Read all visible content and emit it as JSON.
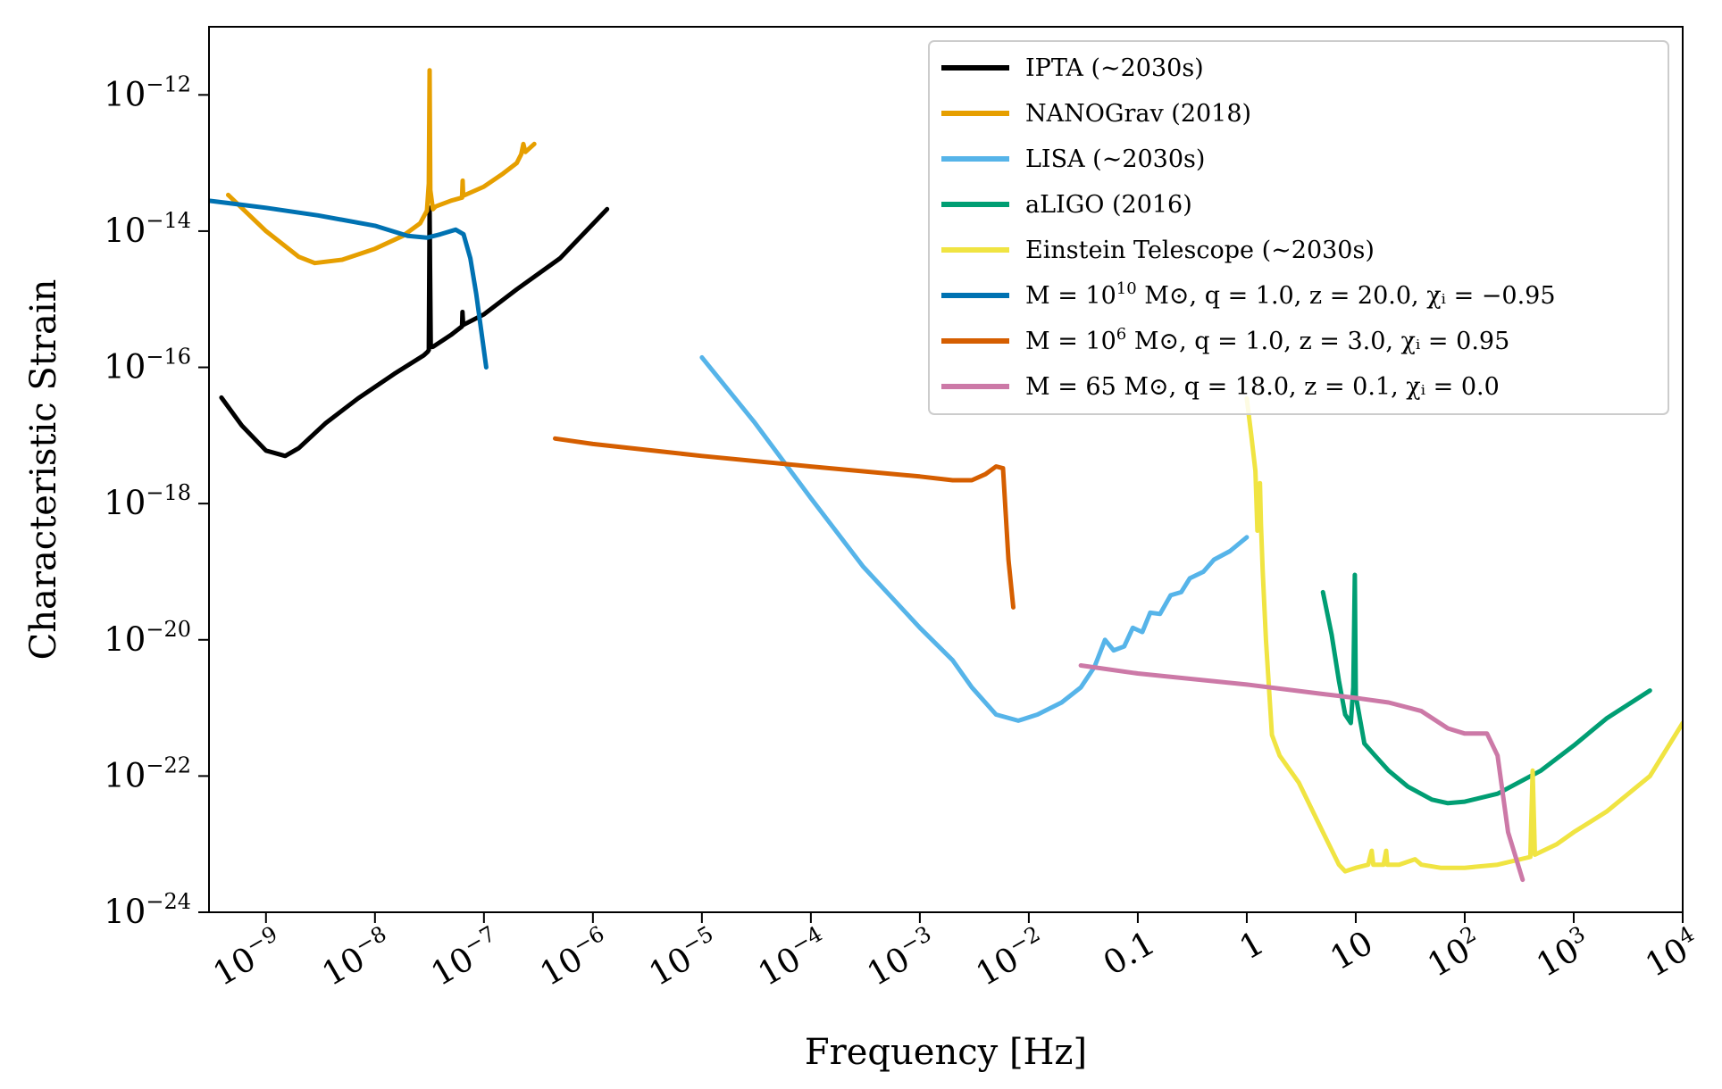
{
  "chart_data": {
    "type": "line",
    "xlabel": "Frequency [Hz]",
    "ylabel": "Characteristic Strain",
    "x_scale": "log",
    "y_scale": "log",
    "xlim": [
      3e-10,
      10000
    ],
    "ylim": [
      1e-24,
      1e-11
    ],
    "grid": false,
    "legend_position": "top-right",
    "x_ticks": [
      {
        "value": 1e-09,
        "base": "10",
        "exp": "−9"
      },
      {
        "value": 1e-08,
        "base": "10",
        "exp": "−8"
      },
      {
        "value": 1e-07,
        "base": "10",
        "exp": "−7"
      },
      {
        "value": 1e-06,
        "base": "10",
        "exp": "−6"
      },
      {
        "value": 1e-05,
        "base": "10",
        "exp": "−5"
      },
      {
        "value": 0.0001,
        "base": "10",
        "exp": "−4"
      },
      {
        "value": 0.001,
        "base": "10",
        "exp": "−3"
      },
      {
        "value": 0.01,
        "base": "10",
        "exp": "−2"
      },
      {
        "value": 0.1,
        "base": "0.1",
        "exp": ""
      },
      {
        "value": 1,
        "base": "1",
        "exp": ""
      },
      {
        "value": 10,
        "base": "10",
        "exp": ""
      },
      {
        "value": 100,
        "base": "10",
        "exp": "2"
      },
      {
        "value": 1000,
        "base": "10",
        "exp": "3"
      },
      {
        "value": 10000,
        "base": "10",
        "exp": "4"
      }
    ],
    "y_ticks": [
      {
        "value": 1e-12,
        "base": "10",
        "exp": "−12"
      },
      {
        "value": 1e-14,
        "base": "10",
        "exp": "−14"
      },
      {
        "value": 1e-16,
        "base": "10",
        "exp": "−16"
      },
      {
        "value": 1e-18,
        "base": "10",
        "exp": "−18"
      },
      {
        "value": 1e-20,
        "base": "10",
        "exp": "−20"
      },
      {
        "value": 1e-22,
        "base": "10",
        "exp": "−22"
      },
      {
        "value": 1e-24,
        "base": "10",
        "exp": "−24"
      }
    ],
    "series": [
      {
        "name": "IPTA (∼2030s)",
        "legend": [
          {
            "t": "IPTA (∼2030s)"
          }
        ],
        "color": "#000000",
        "points": [
          [
            3.9e-10,
            3.6e-17
          ],
          [
            6e-10,
            1.4e-17
          ],
          [
            1e-09,
            6e-18
          ],
          [
            1.5e-09,
            5e-18
          ],
          [
            2e-09,
            6.5e-18
          ],
          [
            3.5e-09,
            1.5e-17
          ],
          [
            7e-09,
            3.5e-17
          ],
          [
            1.5e-08,
            8e-17
          ],
          [
            2.8e-08,
            1.5e-16
          ],
          [
            3.05e-08,
            1.7e-16
          ],
          [
            3.12e-08,
            1.8e-16
          ],
          [
            3.15e-08,
            2.5e-15
          ],
          [
            3.17e-08,
            2.2e-14
          ],
          [
            3.2e-08,
            3e-15
          ],
          [
            3.25e-08,
            2e-16
          ],
          [
            3.4e-08,
            2e-16
          ],
          [
            5e-08,
            3e-16
          ],
          [
            6.3e-08,
            4e-16
          ],
          [
            6.35e-08,
            6.5e-16
          ],
          [
            6.45e-08,
            4.2e-16
          ],
          [
            1e-07,
            6e-16
          ],
          [
            2e-07,
            1.4e-15
          ],
          [
            5e-07,
            4e-15
          ],
          [
            1.35e-06,
            2.1e-14
          ]
        ]
      },
      {
        "name": "NANOGrav (2018)",
        "legend": [
          {
            "t": "NANOGrav (2018)"
          }
        ],
        "color": "#e69f00",
        "points": [
          [
            4.5e-10,
            3.4e-14
          ],
          [
            1e-09,
            1e-14
          ],
          [
            2e-09,
            4.2e-15
          ],
          [
            2.8e-09,
            3.4e-15
          ],
          [
            5e-09,
            3.8e-15
          ],
          [
            1e-08,
            5.5e-15
          ],
          [
            1.8e-08,
            8.5e-15
          ],
          [
            2.6e-08,
            1.3e-14
          ],
          [
            3e-08,
            2e-14
          ],
          [
            3.12e-08,
            5e-14
          ],
          [
            3.17e-08,
            2.3e-12
          ],
          [
            3.22e-08,
            4e-14
          ],
          [
            3.4e-08,
            2.1e-14
          ],
          [
            3.6e-08,
            2.3e-14
          ],
          [
            5e-08,
            2.8e-14
          ],
          [
            6.3e-08,
            3.1e-14
          ],
          [
            6.38e-08,
            5.5e-14
          ],
          [
            6.45e-08,
            3.3e-14
          ],
          [
            1e-07,
            4.5e-14
          ],
          [
            1.5e-07,
            7e-14
          ],
          [
            2e-07,
            1e-13
          ],
          [
            2.2e-07,
            1.35e-13
          ],
          [
            2.3e-07,
            1.9e-13
          ],
          [
            2.4e-07,
            1.45e-13
          ],
          [
            2.9e-07,
            1.9e-13
          ]
        ]
      },
      {
        "name": "LISA (∼2030s)",
        "legend": [
          {
            "t": "LISA (∼2030s)"
          }
        ],
        "color": "#56b4e9",
        "points": [
          [
            1e-05,
            1.4e-16
          ],
          [
            3e-05,
            1.6e-17
          ],
          [
            0.0001,
            1.2e-18
          ],
          [
            0.0003,
            1.2e-19
          ],
          [
            0.001,
            1.5e-20
          ],
          [
            0.002,
            5e-21
          ],
          [
            0.003,
            2e-21
          ],
          [
            0.005,
            8e-22
          ],
          [
            0.008,
            6.5e-22
          ],
          [
            0.012,
            8e-22
          ],
          [
            0.02,
            1.2e-21
          ],
          [
            0.03,
            2e-21
          ],
          [
            0.04,
            4e-21
          ],
          [
            0.05,
            1e-20
          ],
          [
            0.06,
            7e-21
          ],
          [
            0.075,
            8e-21
          ],
          [
            0.09,
            1.5e-20
          ],
          [
            0.11,
            1.3e-20
          ],
          [
            0.13,
            2.5e-20
          ],
          [
            0.16,
            2.4e-20
          ],
          [
            0.2,
            4.5e-20
          ],
          [
            0.25,
            5e-20
          ],
          [
            0.3,
            8e-20
          ],
          [
            0.4,
            1e-19
          ],
          [
            0.5,
            1.5e-19
          ],
          [
            0.7,
            2e-19
          ],
          [
            1.0,
            3.2e-19
          ]
        ]
      },
      {
        "name": "aLIGO (2016)",
        "legend": [
          {
            "t": "aLIGO (2016)"
          }
        ],
        "color": "#009e73",
        "points": [
          [
            5,
            5e-20
          ],
          [
            6,
            1.2e-20
          ],
          [
            7,
            2.5e-21
          ],
          [
            8,
            8e-22
          ],
          [
            9,
            6e-22
          ],
          [
            9.5,
            2e-21
          ],
          [
            9.8,
            9e-20
          ],
          [
            10,
            1.5e-21
          ],
          [
            12,
            3e-22
          ],
          [
            15,
            2e-22
          ],
          [
            20,
            1.2e-22
          ],
          [
            30,
            7e-23
          ],
          [
            50,
            4.5e-23
          ],
          [
            70,
            4e-23
          ],
          [
            100,
            4.2e-23
          ],
          [
            200,
            5.5e-23
          ],
          [
            500,
            1.2e-22
          ],
          [
            1000,
            2.8e-22
          ],
          [
            2000,
            7e-22
          ],
          [
            5000,
            1.8e-21
          ]
        ]
      },
      {
        "name": "Einstein Telescope (∼2030s)",
        "legend": [
          {
            "t": "Einstein Telescope (∼2030s)"
          }
        ],
        "color": "#f0e442",
        "points": [
          [
            1,
            3.5e-17
          ],
          [
            1.1,
            1e-17
          ],
          [
            1.2,
            3e-18
          ],
          [
            1.25,
            4e-19
          ],
          [
            1.3,
            6e-19
          ],
          [
            1.32,
            2e-18
          ],
          [
            1.35,
            5e-19
          ],
          [
            1.4,
            1e-19
          ],
          [
            1.5,
            1e-20
          ],
          [
            1.7,
            4e-22
          ],
          [
            2,
            2e-22
          ],
          [
            3,
            8e-23
          ],
          [
            5,
            1.5e-23
          ],
          [
            7,
            5e-24
          ],
          [
            8,
            4e-24
          ],
          [
            10,
            4.5e-24
          ],
          [
            13,
            5e-24
          ],
          [
            14,
            8e-24
          ],
          [
            14.5,
            5e-24
          ],
          [
            18,
            5e-24
          ],
          [
            19,
            8e-24
          ],
          [
            19.5,
            5e-24
          ],
          [
            25,
            5e-24
          ],
          [
            35,
            6e-24
          ],
          [
            40,
            5e-24
          ],
          [
            60,
            4.5e-24
          ],
          [
            100,
            4.5e-24
          ],
          [
            200,
            5e-24
          ],
          [
            400,
            6.5e-24
          ],
          [
            420,
            1.2e-22
          ],
          [
            440,
            7e-24
          ],
          [
            700,
            1e-23
          ],
          [
            1000,
            1.5e-23
          ],
          [
            2000,
            3e-23
          ],
          [
            5000,
            1e-22
          ],
          [
            10000,
            6e-22
          ]
        ]
      },
      {
        "name": "M = 10^10 M⊙, q = 1.0, z = 20.0, χi = −0.95",
        "legend": [
          {
            "t": "M = 10"
          },
          {
            "t": "10",
            "sup": true
          },
          {
            "t": " M⊙, q = 1.0, z = 20.0, χᵢ = −0.95"
          }
        ],
        "color": "#0072b2",
        "points": [
          [
            3e-10,
            2.8e-14
          ],
          [
            1e-09,
            2.2e-14
          ],
          [
            3e-09,
            1.7e-14
          ],
          [
            1e-08,
            1.2e-14
          ],
          [
            2e-08,
            8.5e-15
          ],
          [
            3e-08,
            8e-15
          ],
          [
            4e-08,
            9e-15
          ],
          [
            5.5e-08,
            1.05e-14
          ],
          [
            6.5e-08,
            9e-15
          ],
          [
            7.5e-08,
            4e-15
          ],
          [
            8.5e-08,
            1.2e-15
          ],
          [
            1.05e-07,
            1e-16
          ]
        ]
      },
      {
        "name": "M = 10^6 M⊙, q = 1.0, z = 3.0, χi = 0.95",
        "legend": [
          {
            "t": "M = 10"
          },
          {
            "t": "6",
            "sup": true
          },
          {
            "t": " M⊙, q = 1.0, z = 3.0, χᵢ = 0.95"
          }
        ],
        "color": "#d55e00",
        "points": [
          [
            4.5e-07,
            9e-18
          ],
          [
            1e-06,
            7.5e-18
          ],
          [
            1e-05,
            5e-18
          ],
          [
            0.0001,
            3.5e-18
          ],
          [
            0.001,
            2.5e-18
          ],
          [
            0.002,
            2.2e-18
          ],
          [
            0.003,
            2.2e-18
          ],
          [
            0.004,
            2.7e-18
          ],
          [
            0.005,
            3.5e-18
          ],
          [
            0.0058,
            3.3e-18
          ],
          [
            0.0065,
            1.5e-19
          ],
          [
            0.0072,
            3e-20
          ]
        ]
      },
      {
        "name": "M = 65 M⊙, q = 18.0, z = 0.1, χi = 0.0",
        "legend": [
          {
            "t": "M = 65 M⊙, q = 18.0, z = 0.1, χᵢ = 0.0"
          }
        ],
        "color": "#cc79a7",
        "points": [
          [
            0.03,
            4.2e-21
          ],
          [
            0.1,
            3.2e-21
          ],
          [
            1,
            2.2e-21
          ],
          [
            5,
            1.6e-21
          ],
          [
            10,
            1.4e-21
          ],
          [
            20,
            1.2e-21
          ],
          [
            40,
            9e-22
          ],
          [
            70,
            5e-22
          ],
          [
            100,
            4.2e-22
          ],
          [
            160,
            4.2e-22
          ],
          [
            200,
            2e-22
          ],
          [
            250,
            1.5e-23
          ],
          [
            340,
            3e-24
          ]
        ]
      }
    ]
  }
}
